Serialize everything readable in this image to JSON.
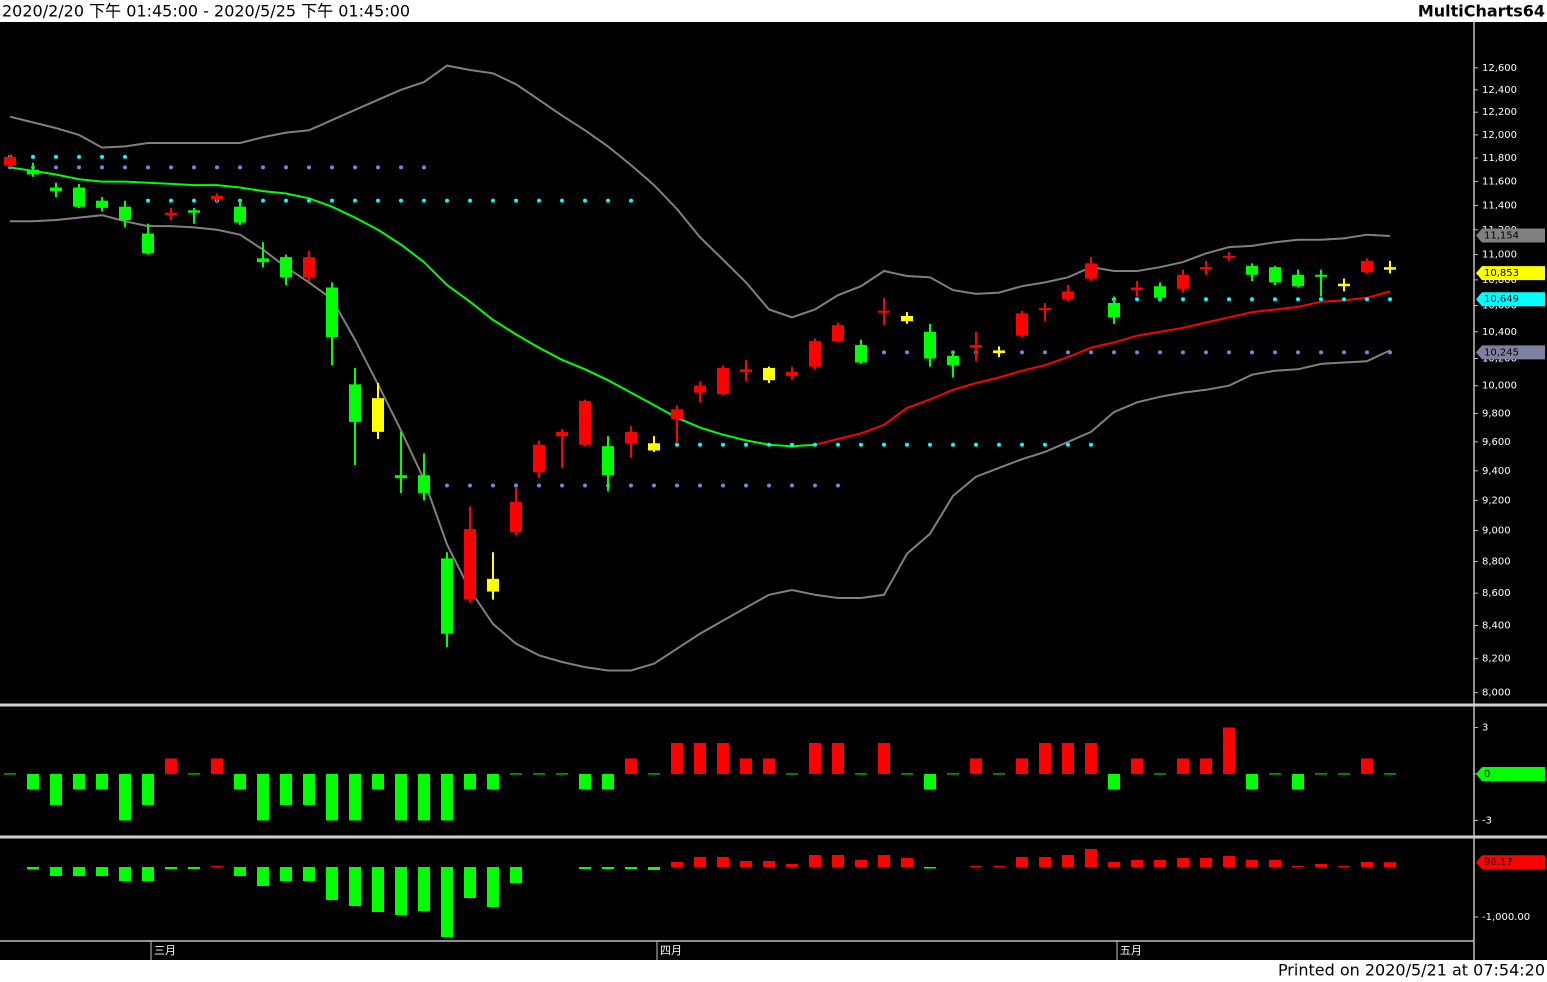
{
  "header": {
    "range": "2020/2/20 下午 01:45:00 - 2020/5/25 下午 01:45:00",
    "app": "MultiCharts64"
  },
  "footer": "Printed on 2020/5/21 at 07:54:20",
  "chart_data": [
    {
      "type": "candlestick",
      "log": true,
      "ylim": [
        7940,
        12970
      ],
      "yticks": [
        {
          "value": 8000,
          "label": "8,000"
        },
        {
          "value": 8200,
          "label": "8,200"
        },
        {
          "value": 8400,
          "label": "8,400"
        },
        {
          "value": 8600,
          "label": "8,600"
        },
        {
          "value": 8800,
          "label": "8,800"
        },
        {
          "value": 9000,
          "label": "9,000"
        },
        {
          "value": 9200,
          "label": "9,200"
        },
        {
          "value": 9400,
          "label": "9,400"
        },
        {
          "value": 9600,
          "label": "9,600"
        },
        {
          "value": 9800,
          "label": "9,800"
        },
        {
          "value": 10000,
          "label": "10,000"
        },
        {
          "value": 10200,
          "label": "10,200"
        },
        {
          "value": 10400,
          "label": "10,400"
        },
        {
          "value": 10600,
          "label": "10,600"
        },
        {
          "value": 10800,
          "label": "10,800"
        },
        {
          "value": 11000,
          "label": "11,000"
        },
        {
          "value": 11200,
          "label": "11,200"
        },
        {
          "value": 11400,
          "label": "11,400"
        },
        {
          "value": 11600,
          "label": "11,600"
        },
        {
          "value": 11800,
          "label": "11,800"
        },
        {
          "value": 12000,
          "label": "12,000"
        },
        {
          "value": 12200,
          "label": "12,200"
        },
        {
          "value": 12400,
          "label": "12,400"
        },
        {
          "value": 12600,
          "label": "12,600"
        }
      ],
      "categories": [
        null,
        null,
        null,
        null,
        null,
        null,
        "三月",
        null,
        null,
        null,
        null,
        null,
        null,
        null,
        null,
        null,
        null,
        null,
        null,
        null,
        null,
        null,
        null,
        null,
        null,
        null,
        null,
        null,
        "四月",
        null,
        null,
        null,
        null,
        null,
        null,
        null,
        null,
        null,
        null,
        null,
        null,
        null,
        null,
        null,
        null,
        null,
        null,
        null,
        "五月",
        null,
        null,
        null,
        null,
        null,
        null,
        null,
        null,
        null,
        null,
        null,
        null
      ],
      "open": [
        11740,
        11700,
        11550,
        11550,
        11440,
        11390,
        11170,
        11320,
        11360,
        11450,
        11390,
        10970,
        10980,
        10820,
        10740,
        10010,
        9910,
        9370,
        9370,
        8820,
        8560,
        8690,
        8990,
        9390,
        9640,
        9580,
        9570,
        9590,
        9590,
        9760,
        9950,
        9940,
        10100,
        10130,
        10070,
        10140,
        10330,
        10300,
        10550,
        10520,
        10400,
        10220,
        10280,
        10260,
        10370,
        10570,
        10650,
        10810,
        10620,
        10720,
        10750,
        10730,
        10890,
        10980,
        10910,
        10900,
        10840,
        10840,
        10770,
        10860,
        10900
      ],
      "high": [
        11830,
        11760,
        11590,
        11580,
        11470,
        11440,
        11250,
        11380,
        11380,
        11500,
        11450,
        11100,
        11000,
        11030,
        10780,
        10130,
        10020,
        9670,
        9520,
        8860,
        9160,
        8860,
        9290,
        9610,
        9690,
        9900,
        9640,
        9710,
        9640,
        9860,
        10030,
        10150,
        10190,
        10140,
        10140,
        10350,
        10470,
        10340,
        10660,
        10550,
        10460,
        10250,
        10400,
        10290,
        10560,
        10620,
        10760,
        10980,
        10670,
        10790,
        10780,
        10880,
        10950,
        11020,
        10930,
        10910,
        10880,
        10880,
        10810,
        10970,
        10950
      ],
      "low": [
        11720,
        11640,
        11470,
        11380,
        11350,
        11220,
        11000,
        11280,
        11250,
        11430,
        11240,
        10900,
        10760,
        10790,
        10150,
        9440,
        9620,
        9250,
        9200,
        8270,
        8540,
        8560,
        8970,
        9350,
        9420,
        9570,
        9260,
        9490,
        9530,
        9590,
        9880,
        9930,
        10030,
        10020,
        10040,
        10120,
        10320,
        10160,
        10450,
        10460,
        10140,
        10060,
        10180,
        10210,
        10360,
        10480,
        10630,
        10790,
        10460,
        10670,
        10630,
        10700,
        10840,
        10950,
        10790,
        10760,
        10740,
        10670,
        10710,
        10850,
        10850
      ],
      "close": [
        11810,
        11660,
        11520,
        11390,
        11380,
        11280,
        11010,
        11340,
        11340,
        11480,
        11260,
        10940,
        10820,
        10980,
        10360,
        9740,
        9670,
        9350,
        9250,
        8350,
        9010,
        8610,
        9190,
        9580,
        9670,
        9890,
        9370,
        9670,
        9540,
        9830,
        10000,
        10130,
        10120,
        10040,
        10100,
        10330,
        10450,
        10170,
        10560,
        10480,
        10200,
        10150,
        10300,
        10240,
        10540,
        10580,
        10710,
        10930,
        10510,
        10740,
        10660,
        10840,
        10900,
        10990,
        10840,
        10780,
        10750,
        10830,
        10750,
        10950,
        10880
      ],
      "colors": [
        "#ff0000",
        "#00ff00",
        "#00ff00",
        "#00ff00",
        "#00ff00",
        "#00ff00",
        "#00ff00",
        "#ff0000",
        "#00ff00",
        "#ff0000",
        "#00ff00",
        "#00ff00",
        "#00ff00",
        "#ff0000",
        "#00ff00",
        "#00ff00",
        "#ffff00",
        "#00ff00",
        "#00ff00",
        "#00ff00",
        "#ff0000",
        "#ffff00",
        "#ff0000",
        "#ff0000",
        "#ff0000",
        "#ff0000",
        "#00ff00",
        "#ff0000",
        "#ffff00",
        "#ff0000",
        "#ff0000",
        "#ff0000",
        "#ff0000",
        "#ffff00",
        "#ff0000",
        "#ff0000",
        "#ff0000",
        "#00ff00",
        "#ff0000",
        "#ffff00",
        "#00ff00",
        "#00ff00",
        "#ff0000",
        "#ffff00",
        "#ff0000",
        "#ff0000",
        "#ff0000",
        "#ff0000",
        "#00ff00",
        "#ff0000",
        "#00ff00",
        "#ff0000",
        "#ff0000",
        "#ff0000",
        "#00ff00",
        "#00ff00",
        "#00ff00",
        "#00ff00",
        "#ffff00",
        "#ff0000",
        "#ffff00"
      ],
      "lines": [
        {
          "color": "#808080",
          "values": [
            12160,
            12110,
            12060,
            12000,
            11890,
            11900,
            11930,
            11930,
            11930,
            11930,
            11930,
            11980,
            12020,
            12040,
            12130,
            12220,
            12310,
            12400,
            12470,
            12620,
            12580,
            12550,
            12450,
            12310,
            12170,
            12040,
            11900,
            11740,
            11570,
            11370,
            11140,
            10960,
            10780,
            10570,
            10510,
            10570,
            10680,
            10750,
            10870,
            10830,
            10820,
            10720,
            10690,
            10700,
            10750,
            10780,
            10820,
            10900,
            10870,
            10870,
            10900,
            10940,
            11010,
            11060,
            11070,
            11100,
            11120,
            11120,
            11130,
            11160,
            11150
          ]
        },
        {
          "color": "#808080",
          "values": [
            11270,
            11270,
            11280,
            11300,
            11320,
            11270,
            11230,
            11230,
            11220,
            11200,
            11160,
            11040,
            10900,
            10780,
            10650,
            10340,
            10010,
            9680,
            9340,
            8910,
            8620,
            8410,
            8290,
            8220,
            8180,
            8150,
            8130,
            8130,
            8170,
            8260,
            8350,
            8430,
            8510,
            8590,
            8620,
            8590,
            8570,
            8570,
            8590,
            8850,
            8980,
            9230,
            9360,
            9420,
            9480,
            9530,
            9600,
            9670,
            9810,
            9880,
            9920,
            9950,
            9970,
            10000,
            10080,
            10110,
            10120,
            10160,
            10170,
            10180,
            10260
          ]
        },
        {
          "color": "#00ff00",
          "values": [
            11720,
            11690,
            11660,
            11620,
            11600,
            11600,
            11590,
            11580,
            11570,
            11570,
            11550,
            11520,
            11500,
            11460,
            11390,
            11300,
            11200,
            11080,
            10940,
            10760,
            10630,
            10490,
            10380,
            10280,
            10190,
            10120,
            10040,
            9950,
            9860,
            9770,
            9700,
            9650,
            9610,
            9580,
            9570,
            9580,
            null,
            null,
            null,
            null,
            null,
            null,
            null,
            null,
            null,
            null,
            null,
            null,
            null,
            null,
            null,
            null,
            null,
            null,
            null,
            null,
            null,
            null,
            null,
            null,
            null
          ]
        },
        {
          "color": "#ff0000",
          "values": [
            null,
            null,
            null,
            null,
            null,
            null,
            null,
            null,
            null,
            null,
            null,
            null,
            null,
            null,
            null,
            null,
            null,
            null,
            null,
            null,
            null,
            null,
            null,
            null,
            null,
            null,
            null,
            null,
            null,
            null,
            null,
            null,
            null,
            null,
            null,
            9580,
            9620,
            9660,
            9720,
            9840,
            9900,
            9970,
            10020,
            10060,
            10110,
            10150,
            10210,
            10280,
            10320,
            10370,
            10400,
            10430,
            10470,
            10510,
            10550,
            10570,
            10590,
            10630,
            10640,
            10660,
            10710
          ]
        }
      ],
      "levels": [
        {
          "value": 11810,
          "color": "#00ffff",
          "first": 0,
          "last": 5
        },
        {
          "value": 11720,
          "color": "#8080e0",
          "first": 0,
          "last": 18
        },
        {
          "value": 11440,
          "color": "#00ffff",
          "first": 6,
          "last": 27
        },
        {
          "value": 9300,
          "color": "#8080e0",
          "first": 19,
          "last": 36
        },
        {
          "value": 9580,
          "color": "#00ffff",
          "first": 28,
          "last": 47
        },
        {
          "value": 10245,
          "color": "#8080e0",
          "first": 37,
          "last": 60
        },
        {
          "value": 10649,
          "color": "#00ffff",
          "first": 48,
          "last": 60
        }
      ],
      "tags": [
        {
          "value": 11154,
          "label": "11,154",
          "color": "#808080"
        },
        {
          "value": 10853,
          "label": "10,853",
          "color": "#ffff00"
        },
        {
          "value": 10649,
          "label": "10,649",
          "color": "#00ffff"
        },
        {
          "value": 10245,
          "label": "10,245",
          "color": "#8080a0"
        }
      ]
    },
    {
      "type": "histogram",
      "ylim": [
        -3.94,
        4.32
      ],
      "yticks": [
        3,
        0,
        -3
      ],
      "up_color": "#ff0000",
      "down_color": "#00ff00",
      "values": [
        0,
        -1,
        -2,
        -1,
        -1,
        -3,
        -2,
        1,
        0,
        1,
        -1,
        -3,
        -2,
        -2,
        -3,
        -3,
        -1,
        -3,
        -3,
        -3,
        -1,
        -1,
        0,
        0,
        0,
        -1,
        -1,
        1,
        0,
        2,
        2,
        2,
        1,
        1,
        0,
        2,
        2,
        0,
        2,
        0,
        -1,
        0,
        1,
        0,
        1,
        2,
        2,
        2,
        -1,
        1,
        0,
        1,
        1,
        3,
        -1,
        0,
        -1,
        0,
        0,
        1,
        0
      ],
      "tags": [
        {
          "value": 0,
          "label": "0",
          "color": "#00ff00"
        }
      ]
    },
    {
      "type": "histogram",
      "ylim": [
        -1460,
        540
      ],
      "yticks": [
        {
          "value": -1000,
          "label": "-1,000.00"
        }
      ],
      "up_color": "#ff0000",
      "down_color": "#00ff00",
      "values": [
        null,
        -50,
        -180,
        -180,
        -180,
        -280,
        -280,
        -40,
        -40,
        20,
        -180,
        -380,
        -280,
        -280,
        -660,
        -780,
        -900,
        -960,
        -880,
        -1400,
        -620,
        -800,
        -320,
        null,
        null,
        -40,
        -40,
        -40,
        -60,
        100,
        200,
        200,
        120,
        120,
        60,
        240,
        240,
        140,
        240,
        180,
        -30,
        null,
        20,
        20,
        200,
        200,
        240,
        360,
        100,
        140,
        140,
        180,
        180,
        220,
        140,
        140,
        20,
        60,
        20,
        100,
        96.17
      ],
      "tags": [
        {
          "value": 96.17,
          "label": "96.17",
          "color": "#ff0000"
        }
      ]
    }
  ]
}
